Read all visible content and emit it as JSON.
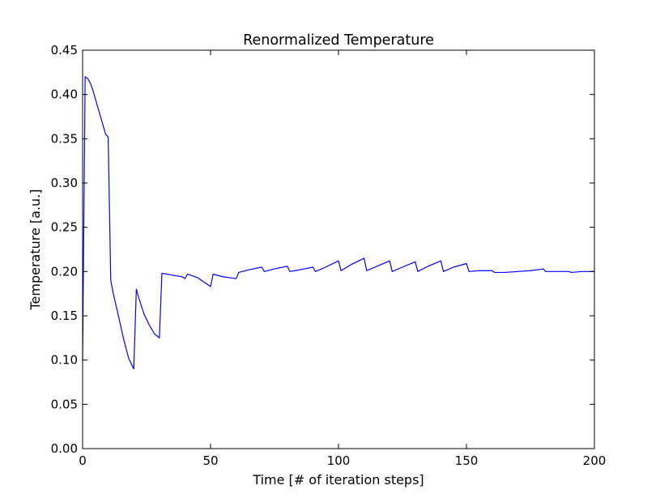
{
  "chart_data": {
    "type": "line",
    "title": "Renormalized Temperature",
    "xlabel": "Time [# of iteration steps]",
    "ylabel": "Temperature [a.u.]",
    "xlim": [
      0,
      200
    ],
    "ylim": [
      0,
      0.45
    ],
    "xticks": [
      0,
      50,
      100,
      150,
      200
    ],
    "xtick_labels": [
      "0",
      "50",
      "100",
      "150",
      "200"
    ],
    "yticks": [
      0,
      0.05,
      0.1,
      0.15,
      0.2,
      0.25,
      0.3,
      0.35,
      0.4,
      0.45
    ],
    "ytick_labels": [
      "0.00",
      "0.05",
      "0.10",
      "0.15",
      "0.20",
      "0.25",
      "0.30",
      "0.35",
      "0.40",
      "0.45"
    ],
    "grid": false,
    "series": [
      {
        "color": "#0000ff",
        "x": [
          0,
          1,
          2,
          3,
          4,
          5,
          6,
          7,
          8,
          9,
          10,
          11,
          12,
          14,
          16,
          18,
          20,
          21,
          22,
          24,
          26,
          28,
          30,
          31,
          35,
          39,
          40,
          41,
          45,
          50,
          51,
          55,
          60,
          61,
          65,
          70,
          71,
          75,
          80,
          81,
          85,
          90,
          91,
          95,
          100,
          101,
          105,
          110,
          111,
          115,
          120,
          121,
          125,
          130,
          131,
          135,
          140,
          141,
          145,
          150,
          151,
          155,
          160,
          161,
          165,
          170,
          175,
          180,
          181,
          185,
          190,
          191,
          195,
          200
        ],
        "y": [
          0.1,
          0.42,
          0.418,
          0.413,
          0.405,
          0.395,
          0.385,
          0.375,
          0.365,
          0.355,
          0.352,
          0.19,
          0.175,
          0.15,
          0.124,
          0.102,
          0.09,
          0.18,
          0.17,
          0.152,
          0.14,
          0.13,
          0.125,
          0.198,
          0.196,
          0.194,
          0.192,
          0.197,
          0.193,
          0.183,
          0.197,
          0.194,
          0.192,
          0.199,
          0.202,
          0.205,
          0.2,
          0.203,
          0.206,
          0.2,
          0.202,
          0.205,
          0.2,
          0.205,
          0.212,
          0.201,
          0.208,
          0.215,
          0.201,
          0.206,
          0.212,
          0.2,
          0.205,
          0.211,
          0.2,
          0.206,
          0.212,
          0.2,
          0.205,
          0.209,
          0.2,
          0.201,
          0.201,
          0.199,
          0.199,
          0.2,
          0.201,
          0.203,
          0.2,
          0.2,
          0.2,
          0.199,
          0.2,
          0.2
        ]
      }
    ]
  }
}
